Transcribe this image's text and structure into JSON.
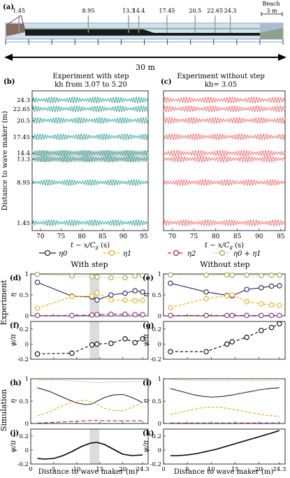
{
  "setup": {
    "panel_label": "(a)",
    "gauge_labels": [
      "1.45",
      "8.95",
      "13.3",
      "14.4",
      "17.45",
      "20.5",
      "22.65",
      "24.3"
    ],
    "gauge_positions_m": [
      1.45,
      8.95,
      13.3,
      14.4,
      17.45,
      20.5,
      22.65,
      24.3
    ],
    "beach_label": "Beach",
    "beach_length": "3 m",
    "tank_length": "30 m"
  },
  "ts": {
    "label_b": "(b)",
    "label_c": "(c)",
    "title_b1": "Experiment with step",
    "title_b2": "kh from 3.07 to 5.20",
    "title_c1": "Experiment without step",
    "title_c2": "kh= 3.05",
    "ylabel": "Distance to wave maker (m)",
    "xlabel": "t − x/C",
    "xlabel_sub": "g",
    "xlabel_unit": " (s)",
    "xticks": [
      "70",
      "75",
      "80",
      "85",
      "90",
      "95"
    ],
    "yticks": [
      "24.3",
      "22.65",
      "20.5",
      "17.45",
      "14.4",
      "13.3",
      "8.95",
      "1.45"
    ],
    "color_b": "#3aa79a",
    "color_c": "#f06e6e"
  },
  "legend": {
    "entries": [
      {
        "label": "η0",
        "color": "#26235e"
      },
      {
        "label": "η1",
        "color": "#e6b21a"
      },
      {
        "label": "η2",
        "color": "#8c2a7e"
      },
      {
        "label": "η0 + η1",
        "color": "#86b73c"
      }
    ]
  },
  "cols": {
    "left": "With step",
    "right": "Without step"
  },
  "rowlabels": {
    "experiment": "Experiment",
    "simulation": "Simulation"
  },
  "panels": {
    "d": {
      "label": "(d)",
      "ylabel": "η",
      "yticks": [
        "0",
        "0.5",
        "1"
      ]
    },
    "e": {
      "label": "(e)",
      "ylabel": "η",
      "yticks": [
        "0",
        "0.5",
        "1"
      ]
    },
    "f": {
      "label": "(f)",
      "ylabel": "ψ/π",
      "yticks": [
        "-0.2",
        "0",
        "0.2"
      ]
    },
    "g": {
      "label": "(g)",
      "ylabel": "ψ/π",
      "yticks": [
        "-0.2",
        "0",
        "0.2"
      ]
    },
    "h": {
      "label": "(h)",
      "ylabel": "η",
      "yticks": [
        "0",
        "0.5",
        "1"
      ]
    },
    "i": {
      "label": "(i)",
      "ylabel": "η",
      "yticks": [
        "0",
        "0.5",
        "1"
      ]
    },
    "j": {
      "label": "(j)",
      "ylabel": "ψ/π",
      "yticks": [
        "-0.2",
        "0",
        "0.2"
      ]
    },
    "k": {
      "label": "(k)",
      "ylabel": "ψ/π",
      "yticks": [
        "-0.2",
        "0",
        "0.2"
      ]
    }
  },
  "xaxis_bottom": {
    "ticks": [
      "0",
      "5",
      "10",
      "15",
      "20",
      "24.3"
    ],
    "xlabel": "Distance to wave maker (m)"
  },
  "chart_data": [
    {
      "type": "line",
      "id": "b",
      "xlim": [
        68,
        96
      ],
      "gauges_m": [
        24.3,
        22.65,
        20.5,
        17.45,
        14.4,
        13.3,
        8.95,
        1.45
      ],
      "shaded_band_m": [
        13.3,
        14.4
      ]
    },
    {
      "type": "line",
      "id": "c",
      "xlim": [
        68,
        96
      ],
      "gauges_m": [
        24.3,
        22.65,
        20.5,
        17.45,
        14.4,
        13.3,
        8.95,
        1.45
      ]
    },
    {
      "type": "line",
      "id": "d",
      "xlim": [
        0,
        25.5
      ],
      "ylim": [
        0,
        1
      ],
      "shaded_band_x": [
        12.8,
        14.9
      ],
      "x": [
        1.45,
        8.95,
        13.3,
        14.4,
        17.45,
        20.5,
        22.65,
        24.3
      ],
      "series": [
        {
          "name": "η0",
          "values": [
            0.8,
            0.47,
            0.45,
            0.38,
            0.5,
            0.54,
            0.6,
            0.57
          ]
        },
        {
          "name": "η1",
          "values": [
            0.18,
            0.46,
            0.47,
            0.55,
            0.38,
            0.37,
            0.36,
            0.37
          ]
        },
        {
          "name": "η2",
          "values": [
            0.01,
            0.01,
            0.02,
            0.03,
            0.04,
            0.04,
            0.03,
            0.03
          ]
        },
        {
          "name": "η0 + η1",
          "values": [
            0.99,
            0.95,
            0.94,
            0.93,
            0.91,
            0.91,
            0.95,
            0.96
          ]
        }
      ]
    },
    {
      "type": "line",
      "id": "e",
      "xlim": [
        0,
        25.5
      ],
      "ylim": [
        0,
        1
      ],
      "x": [
        1.45,
        8.95,
        13.3,
        14.4,
        17.45,
        20.5,
        22.65,
        24.3
      ],
      "series": [
        {
          "name": "η0",
          "values": [
            0.78,
            0.57,
            0.49,
            0.48,
            0.63,
            0.67,
            0.71,
            0.72
          ]
        },
        {
          "name": "η1",
          "values": [
            0.2,
            0.41,
            0.48,
            0.5,
            0.34,
            0.29,
            0.26,
            0.25
          ]
        },
        {
          "name": "η2",
          "values": [
            0.01,
            0.01,
            0.01,
            0.01,
            0.01,
            0.01,
            0.01,
            0.01
          ]
        },
        {
          "name": "η0 + η1",
          "values": [
            0.98,
            0.97,
            0.98,
            0.97,
            0.97,
            0.96,
            0.97,
            0.97
          ]
        }
      ]
    },
    {
      "type": "line",
      "id": "f",
      "xlim": [
        0,
        25.5
      ],
      "ylim": [
        -0.2,
        0.3
      ],
      "shaded_band_x": [
        12.8,
        14.9
      ],
      "x": [
        1.45,
        8.95,
        13.3,
        14.4,
        17.45,
        20.5,
        22.65,
        24.3
      ],
      "series": [
        {
          "name": "ψ/π",
          "values": [
            -0.13,
            -0.12,
            -0.01,
            0.0,
            0.01,
            0.07,
            0.02,
            0.07
          ]
        }
      ]
    },
    {
      "type": "line",
      "id": "g",
      "xlim": [
        0,
        25.5
      ],
      "ylim": [
        -0.2,
        0.3
      ],
      "x": [
        1.45,
        8.95,
        13.3,
        14.4,
        17.45,
        20.5,
        22.65,
        24.3
      ],
      "series": [
        {
          "name": "ψ/π",
          "values": [
            -0.1,
            -0.1,
            0.0,
            0.03,
            0.09,
            0.18,
            0.22,
            0.27
          ]
        }
      ]
    },
    {
      "type": "line",
      "id": "h",
      "xlim": [
        0,
        25.5
      ],
      "ylim": [
        0,
        1
      ],
      "x": [
        1.45,
        4,
        6,
        8,
        10,
        12,
        13.3,
        14.4,
        16,
        18,
        20,
        22,
        24.3
      ],
      "series": [
        {
          "name": "η0",
          "values": [
            0.8,
            0.72,
            0.63,
            0.54,
            0.46,
            0.42,
            0.44,
            0.5,
            0.58,
            0.64,
            0.65,
            0.58,
            0.47
          ]
        },
        {
          "name": "η1",
          "values": [
            0.17,
            0.26,
            0.35,
            0.44,
            0.5,
            0.52,
            0.48,
            0.42,
            0.34,
            0.29,
            0.28,
            0.36,
            0.47
          ]
        },
        {
          "name": "η2",
          "values": [
            0.01,
            0.02,
            0.03,
            0.04,
            0.05,
            0.06,
            0.07,
            0.07,
            0.06,
            0.06,
            0.06,
            0.06,
            0.06
          ]
        },
        {
          "name": "η0 + η1",
          "values": [
            0.97,
            0.97,
            0.97,
            0.96,
            0.95,
            0.93,
            0.92,
            0.91,
            0.92,
            0.93,
            0.93,
            0.94,
            0.95
          ]
        }
      ]
    },
    {
      "type": "line",
      "id": "i",
      "xlim": [
        0,
        25.5
      ],
      "ylim": [
        0,
        1
      ],
      "x": [
        1.45,
        4,
        6,
        8,
        10,
        12,
        14,
        16,
        18,
        20,
        22,
        24.3
      ],
      "series": [
        {
          "name": "η0",
          "values": [
            0.78,
            0.71,
            0.65,
            0.61,
            0.59,
            0.6,
            0.63,
            0.67,
            0.71,
            0.75,
            0.78,
            0.8
          ]
        },
        {
          "name": "η1",
          "values": [
            0.2,
            0.26,
            0.31,
            0.35,
            0.37,
            0.36,
            0.33,
            0.29,
            0.25,
            0.21,
            0.18,
            0.16
          ]
        },
        {
          "name": "η2",
          "values": [
            0.01,
            0.01,
            0.01,
            0.01,
            0.01,
            0.01,
            0.01,
            0.01,
            0.01,
            0.01,
            0.01,
            0.01
          ]
        },
        {
          "name": "η0 + η1",
          "values": [
            0.98,
            0.97,
            0.96,
            0.96,
            0.96,
            0.96,
            0.96,
            0.96,
            0.96,
            0.96,
            0.96,
            0.96
          ]
        }
      ]
    },
    {
      "type": "line",
      "id": "j",
      "xlim": [
        0,
        25.5
      ],
      "ylim": [
        -0.2,
        0.3
      ],
      "shaded_band_x": [
        12.8,
        14.9
      ],
      "x": [
        1.45,
        3,
        5,
        7,
        9,
        11,
        13,
        14.4,
        16,
        18,
        20,
        22,
        24.3
      ],
      "series": [
        {
          "name": "ψ/π",
          "values": [
            -0.12,
            -0.13,
            -0.12,
            -0.08,
            -0.02,
            0.05,
            0.1,
            0.11,
            0.08,
            0.01,
            -0.06,
            -0.08,
            -0.07
          ]
        }
      ]
    },
    {
      "type": "line",
      "id": "k",
      "xlim": [
        0,
        25.5
      ],
      "ylim": [
        -0.2,
        0.3
      ],
      "x": [
        1.45,
        3,
        5,
        7,
        9,
        11,
        13,
        15,
        17,
        19,
        21,
        23,
        24.3
      ],
      "series": [
        {
          "name": "ψ/π",
          "values": [
            -0.08,
            -0.08,
            -0.07,
            -0.05,
            -0.02,
            0.01,
            0.05,
            0.09,
            0.13,
            0.17,
            0.21,
            0.25,
            0.28
          ]
        }
      ]
    }
  ]
}
